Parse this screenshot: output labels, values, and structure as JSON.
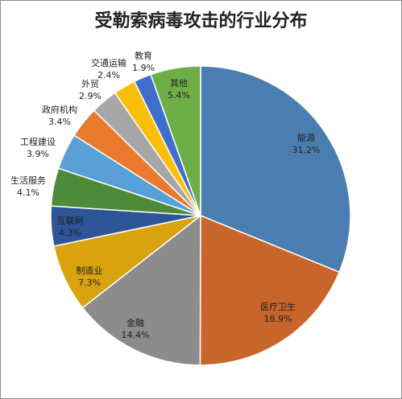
{
  "chart_data": {
    "type": "pie",
    "title": "受勒索病毒攻击的行业分布",
    "slices": [
      {
        "label": "能源",
        "pct_label": "31.2%",
        "value": 31.2,
        "color": "#4a7eb0"
      },
      {
        "label": "医疗卫生",
        "pct_label": "18.9%",
        "value": 18.9,
        "color": "#c8652a"
      },
      {
        "label": "金融",
        "pct_label": "14.4%",
        "value": 14.4,
        "color": "#8c8c8c"
      },
      {
        "label": "制造业",
        "pct_label": "7.3%",
        "value": 7.3,
        "color": "#d9a20f"
      },
      {
        "label": "互联网",
        "pct_label": "4.3%",
        "value": 4.3,
        "color": "#2e5597"
      },
      {
        "label": "生活服务",
        "pct_label": "4.1%",
        "value": 4.1,
        "color": "#4d8b3a"
      },
      {
        "label": "工程建设",
        "pct_label": "3.9%",
        "value": 3.9,
        "color": "#5aa0d8"
      },
      {
        "label": "政府机构",
        "pct_label": "3.4%",
        "value": 3.4,
        "color": "#e8792d"
      },
      {
        "label": "外贸",
        "pct_label": "2.9%",
        "value": 2.9,
        "color": "#a6a6a6"
      },
      {
        "label": "交通运输",
        "pct_label": "2.4%",
        "value": 2.4,
        "color": "#fbbf0a"
      },
      {
        "label": "教育",
        "pct_label": "1.9%",
        "value": 1.9,
        "color": "#3f6fcb"
      },
      {
        "label": "其他",
        "pct_label": "5.4%",
        "value": 5.4,
        "color": "#6eae47"
      }
    ]
  }
}
